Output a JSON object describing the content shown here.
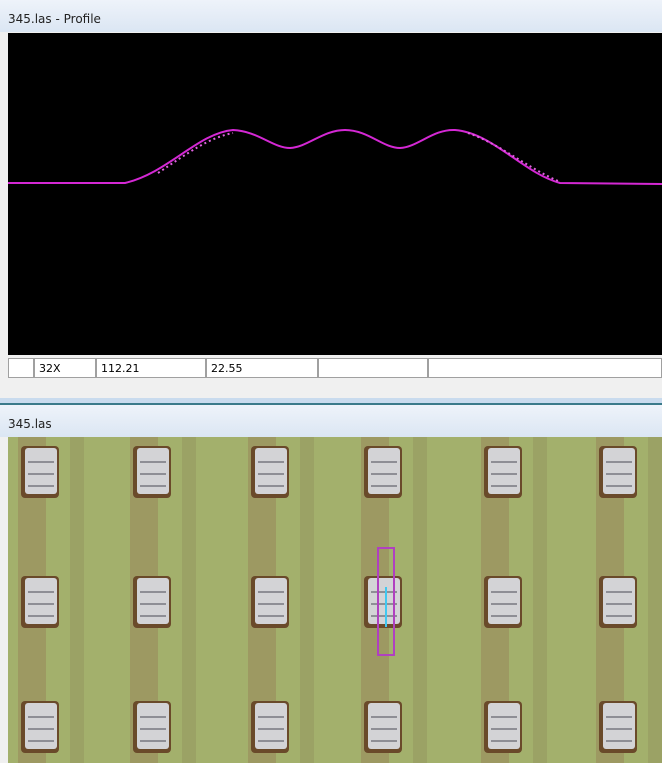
{
  "profile_window": {
    "title": "345.las - Profile",
    "status_bar": [
      "32X",
      "112.21",
      "22.55"
    ]
  },
  "map_window": {
    "title": "345.las"
  }
}
